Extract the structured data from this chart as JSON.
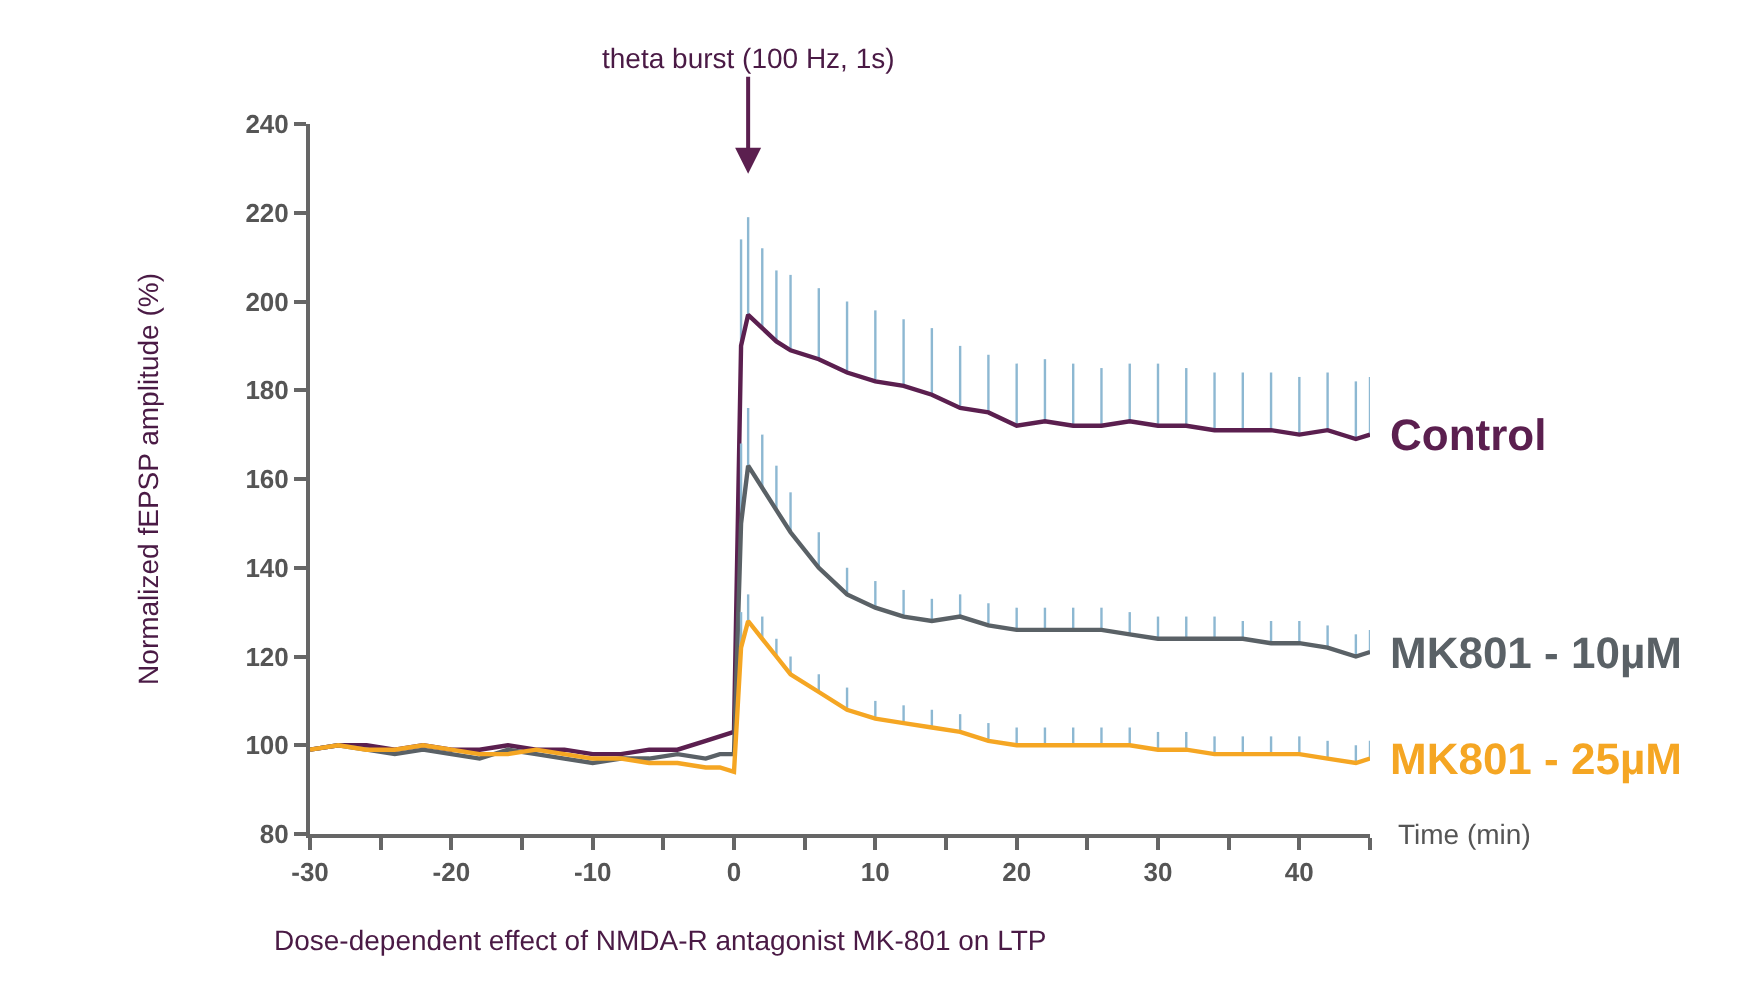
{
  "chart_data": {
    "type": "line",
    "xlabel": "Time (min)",
    "ylabel": "Normalized fEPSP amplitude (%)",
    "xlim": [
      -30,
      45
    ],
    "ylim": [
      80,
      240
    ],
    "xticks": [
      -30,
      {
        "value": -25,
        "label": null
      },
      -20,
      {
        "value": -15,
        "label": null
      },
      -10,
      {
        "value": -5,
        "label": null
      },
      0,
      {
        "value": 5,
        "label": null
      },
      10,
      {
        "value": 15,
        "label": null
      },
      20,
      {
        "value": 25,
        "label": null
      },
      30,
      {
        "value": 35,
        "label": null
      },
      40,
      {
        "value": 45,
        "label": null
      }
    ],
    "yticks": [
      80,
      100,
      120,
      140,
      160,
      180,
      200,
      220,
      240
    ],
    "grid": false,
    "legend": false,
    "marker": "none",
    "line_style": "solid",
    "x": [
      -30,
      -28,
      -26,
      -24,
      -22,
      -20,
      -18,
      -16,
      -14,
      -12,
      -10,
      -8,
      -6,
      -4,
      -2,
      -1,
      0,
      0.5,
      1,
      2,
      3,
      4,
      6,
      8,
      10,
      12,
      14,
      16,
      18,
      20,
      22,
      24,
      26,
      28,
      30,
      32,
      34,
      36,
      38,
      40,
      42,
      44,
      45
    ],
    "series": [
      {
        "name": "Control",
        "color": "#5b1f4f",
        "values": [
          99,
          100,
          100,
          99,
          100,
          99,
          99,
          100,
          99,
          99,
          98,
          98,
          99,
          99,
          101,
          102,
          103,
          190,
          197,
          194,
          191,
          189,
          187,
          184,
          182,
          181,
          179,
          176,
          175,
          172,
          173,
          172,
          172,
          173,
          172,
          172,
          171,
          171,
          171,
          170,
          171,
          169,
          170
        ],
        "errors": [
          null,
          null,
          null,
          null,
          null,
          null,
          null,
          null,
          null,
          null,
          null,
          null,
          null,
          null,
          null,
          null,
          null,
          [
            190,
            214
          ],
          [
            197,
            219
          ],
          [
            194,
            212
          ],
          [
            191,
            207
          ],
          [
            189,
            206
          ],
          [
            187,
            203
          ],
          [
            184,
            200
          ],
          [
            182,
            198
          ],
          [
            181,
            196
          ],
          [
            179,
            194
          ],
          [
            176,
            190
          ],
          [
            175,
            188
          ],
          [
            172,
            186
          ],
          [
            173,
            187
          ],
          [
            172,
            186
          ],
          [
            172,
            185
          ],
          [
            173,
            186
          ],
          [
            172,
            186
          ],
          [
            172,
            185
          ],
          [
            171,
            184
          ],
          [
            171,
            184
          ],
          [
            171,
            184
          ],
          [
            170,
            183
          ],
          [
            171,
            184
          ],
          [
            169,
            182
          ],
          [
            170,
            183
          ]
        ]
      },
      {
        "name": "MK801 - 10µM",
        "color": "#5a6166",
        "values": [
          99,
          100,
          99,
          98,
          99,
          98,
          97,
          99,
          98,
          97,
          96,
          97,
          97,
          98,
          97,
          98,
          98,
          150,
          163,
          158,
          153,
          148,
          140,
          134,
          131,
          129,
          128,
          129,
          127,
          126,
          126,
          126,
          126,
          125,
          124,
          124,
          124,
          124,
          123,
          123,
          122,
          120,
          121
        ],
        "errors": [
          null,
          null,
          null,
          null,
          null,
          null,
          null,
          null,
          null,
          null,
          null,
          null,
          null,
          null,
          null,
          null,
          null,
          [
            150,
            168
          ],
          [
            163,
            176
          ],
          [
            158,
            170
          ],
          [
            153,
            163
          ],
          [
            148,
            157
          ],
          [
            140,
            148
          ],
          [
            134,
            140
          ],
          [
            131,
            137
          ],
          [
            129,
            135
          ],
          [
            128,
            133
          ],
          [
            129,
            134
          ],
          [
            127,
            132
          ],
          [
            126,
            131
          ],
          [
            126,
            131
          ],
          [
            126,
            131
          ],
          [
            126,
            131
          ],
          [
            125,
            130
          ],
          [
            124,
            129
          ],
          [
            124,
            129
          ],
          [
            124,
            129
          ],
          [
            124,
            128
          ],
          [
            123,
            128
          ],
          [
            123,
            128
          ],
          [
            122,
            127
          ],
          [
            120,
            125
          ],
          [
            121,
            126
          ]
        ]
      },
      {
        "name": "MK801 - 25µM",
        "color": "#f5a623",
        "values": [
          99,
          100,
          99,
          99,
          100,
          99,
          98,
          98,
          99,
          98,
          97,
          97,
          96,
          96,
          95,
          95,
          94,
          122,
          128,
          124,
          120,
          116,
          112,
          108,
          106,
          105,
          104,
          103,
          101,
          100,
          100,
          100,
          100,
          100,
          99,
          99,
          98,
          98,
          98,
          98,
          97,
          96,
          97
        ],
        "errors": [
          null,
          null,
          null,
          null,
          null,
          null,
          null,
          null,
          null,
          null,
          null,
          null,
          null,
          null,
          null,
          null,
          null,
          [
            122,
            130
          ],
          [
            128,
            134
          ],
          [
            124,
            129
          ],
          [
            120,
            124
          ],
          [
            116,
            120
          ],
          [
            112,
            116
          ],
          [
            108,
            113
          ],
          [
            106,
            110
          ],
          [
            105,
            109
          ],
          [
            104,
            108
          ],
          [
            103,
            107
          ],
          [
            101,
            105
          ],
          [
            100,
            104
          ],
          [
            100,
            104
          ],
          [
            100,
            104
          ],
          [
            100,
            104
          ],
          [
            100,
            104
          ],
          [
            99,
            103
          ],
          [
            99,
            103
          ],
          [
            98,
            102
          ],
          [
            98,
            102
          ],
          [
            98,
            102
          ],
          [
            98,
            102
          ],
          [
            97,
            101
          ],
          [
            96,
            100
          ],
          [
            97,
            101
          ]
        ]
      }
    ],
    "annotations": [
      "theta burst (100 Hz, 1s)",
      "Dose-dependent effect of NMDA-R antagonist MK-801 on LTP"
    ]
  }
}
